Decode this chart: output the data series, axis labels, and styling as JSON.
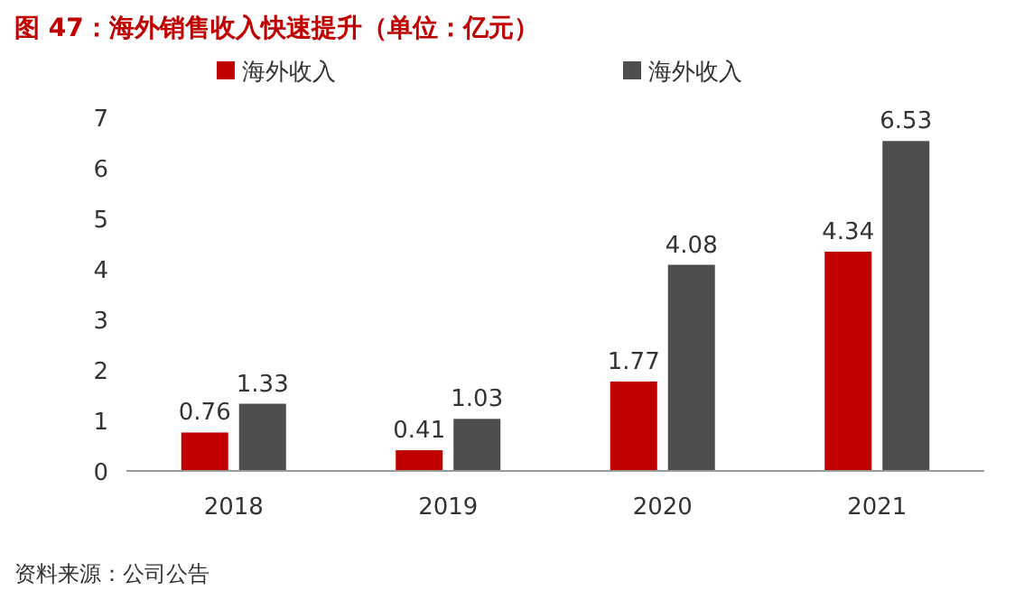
{
  "chart_data": {
    "type": "bar",
    "title": "图 47：海外销售收入快速提升（单位：亿元）",
    "categories": [
      "2018",
      "2019",
      "2020",
      "2021"
    ],
    "series": [
      {
        "name": "海外收入",
        "color": "#c00000",
        "values": [
          0.76,
          0.41,
          1.77,
          4.34
        ]
      },
      {
        "name": "海外收入",
        "color": "#4d4d4d",
        "values": [
          1.33,
          1.03,
          4.08,
          6.53
        ]
      }
    ],
    "ylim": [
      0,
      7
    ],
    "yticks": [
      0,
      1,
      2,
      3,
      4,
      5,
      6,
      7
    ],
    "data_labels": true,
    "legend": "top",
    "grid": false,
    "annotations": [
      "资料来源：公司公告"
    ]
  }
}
